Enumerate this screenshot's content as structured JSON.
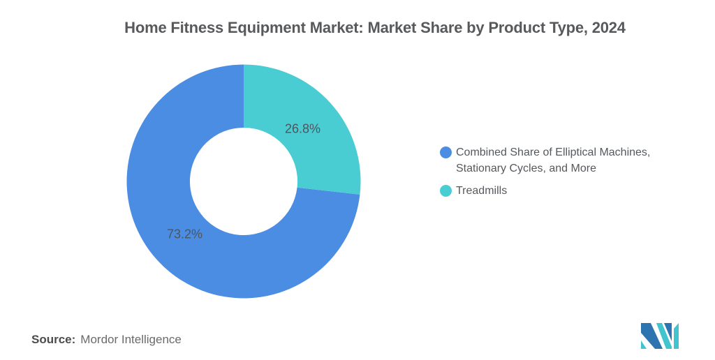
{
  "title": "Home Fitness Equipment Market: Market Share by Product Type, 2024",
  "chart_data": {
    "type": "pie",
    "subtype": "donut",
    "title": "Home Fitness Equipment Market: Market Share by Product Type, 2024",
    "units": "percent",
    "total": 100,
    "start_angle_deg": 0,
    "direction": "counterclockwise",
    "inner_radius_ratio": 0.46,
    "legend_position": "right",
    "slices": [
      {
        "label": "Combined Share of Elliptical Machines, Stationary Cycles, and More",
        "value": 73.2,
        "data_label": "73.2%",
        "color": "#4a8de2"
      },
      {
        "label": "Treadmills",
        "value": 26.8,
        "data_label": "26.8%",
        "color": "#49cdd3"
      }
    ]
  },
  "source": {
    "label": "Source:",
    "text": "Mordor Intelligence"
  },
  "logo": {
    "name": "mordor-intelligence-logo",
    "colors": {
      "blue": "#2e74b0",
      "teal": "#41c4cd"
    }
  }
}
